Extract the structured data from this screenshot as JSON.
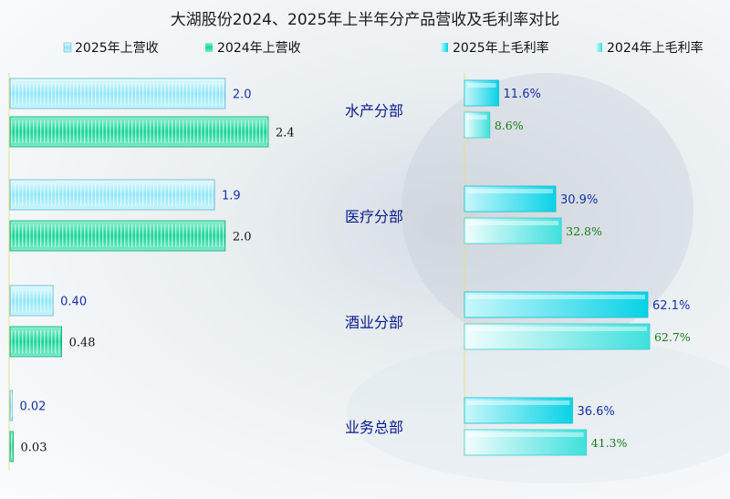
{
  "chart_data": {
    "type": "bar",
    "title": "大湖股份2024、2025年上半年分产品营收及毛利率对比",
    "categories": [
      "水产分部",
      "医疗分部",
      "酒业分部",
      "业务总部"
    ],
    "legend": [
      "2025年上营收",
      "2024年上营收",
      "2025年上毛利率",
      "2024年上毛利率"
    ],
    "revenue": {
      "series": [
        {
          "name": "2025年上营收",
          "values": [
            2.0,
            1.9,
            0.4,
            0.02
          ],
          "labels": [
            "2.0",
            "1.9",
            "0.40",
            "0.02"
          ],
          "color": "#7fe3f5"
        },
        {
          "name": "2024年上营收",
          "values": [
            2.4,
            2.0,
            0.48,
            0.03
          ],
          "labels": [
            "2.4",
            "2.0",
            "0.48",
            "0.03"
          ],
          "color": "#1fd6a2"
        }
      ]
    },
    "margin": {
      "series": [
        {
          "name": "2025年上毛利率",
          "values": [
            11.6,
            30.9,
            62.1,
            36.6
          ],
          "labels": [
            "11.6%",
            "30.9%",
            "62.1%",
            "36.6%"
          ],
          "color": "#12d8e8"
        },
        {
          "name": "2024年上毛利率",
          "values": [
            8.6,
            32.8,
            62.7,
            41.3
          ],
          "labels": [
            "8.6%",
            "32.8%",
            "62.7%",
            "41.3%"
          ],
          "color": "#5fe6e0"
        }
      ]
    }
  }
}
